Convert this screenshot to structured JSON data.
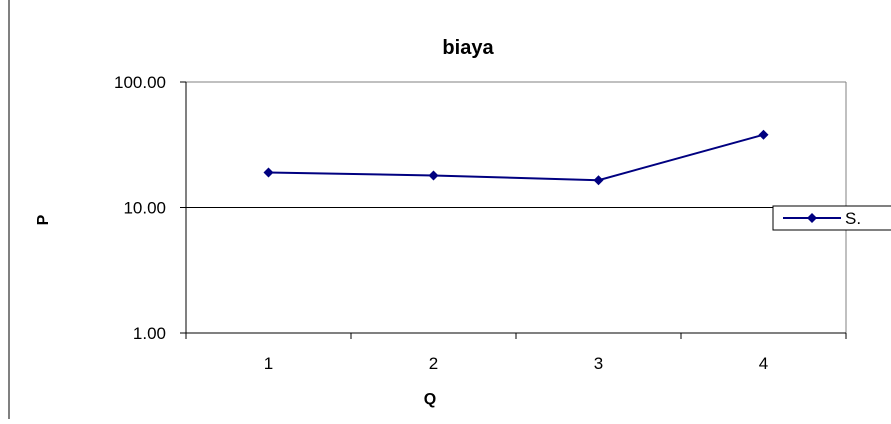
{
  "chart_data": {
    "type": "line",
    "title": "biaya",
    "xlabel": "Q",
    "ylabel": "P",
    "y_scale": "log",
    "ylim": [
      1,
      100
    ],
    "y_ticks": [
      "1.00",
      "10.00",
      "100.00"
    ],
    "categories": [
      "1",
      "2",
      "3",
      "4"
    ],
    "grid": "horizontal",
    "legend_position": "right",
    "series": [
      {
        "name": "S.",
        "values": [
          19.0,
          18.0,
          16.5,
          38.0
        ],
        "color": "#000080",
        "marker": "diamond"
      }
    ]
  }
}
